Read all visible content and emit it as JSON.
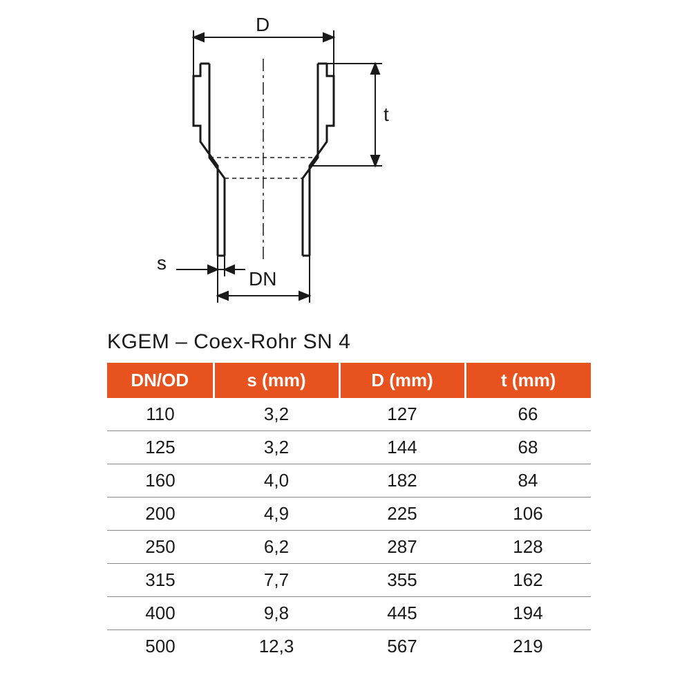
{
  "diagram": {
    "labels": {
      "D": "D",
      "t": "t",
      "s": "s",
      "DN": "DN"
    },
    "stroke_color": "#1a1a1a",
    "stroke_width": 2,
    "thick_stroke_width": 3
  },
  "table": {
    "title": "KGEM – Coex-Rohr SN 4",
    "title_fontsize": 30,
    "header_bg": "#e8521f",
    "header_fg": "#ffffff",
    "header_fontsize": 26,
    "cell_fontsize": 26,
    "cell_color": "#1a1a1a",
    "row_border": "#888888",
    "columns": [
      "DN/OD",
      "s (mm)",
      "D (mm)",
      "t (mm)"
    ],
    "col_widths_pct": [
      22,
      26,
      26,
      26
    ],
    "rows": [
      [
        "110",
        "3,2",
        "127",
        "66"
      ],
      [
        "125",
        "3,2",
        "144",
        "68"
      ],
      [
        "160",
        "4,0",
        "182",
        "84"
      ],
      [
        "200",
        "4,9",
        "225",
        "106"
      ],
      [
        "250",
        "6,2",
        "287",
        "128"
      ],
      [
        "315",
        "7,7",
        "355",
        "162"
      ],
      [
        "400",
        "9,8",
        "445",
        "194"
      ],
      [
        "500",
        "12,3",
        "567",
        "219"
      ]
    ]
  }
}
